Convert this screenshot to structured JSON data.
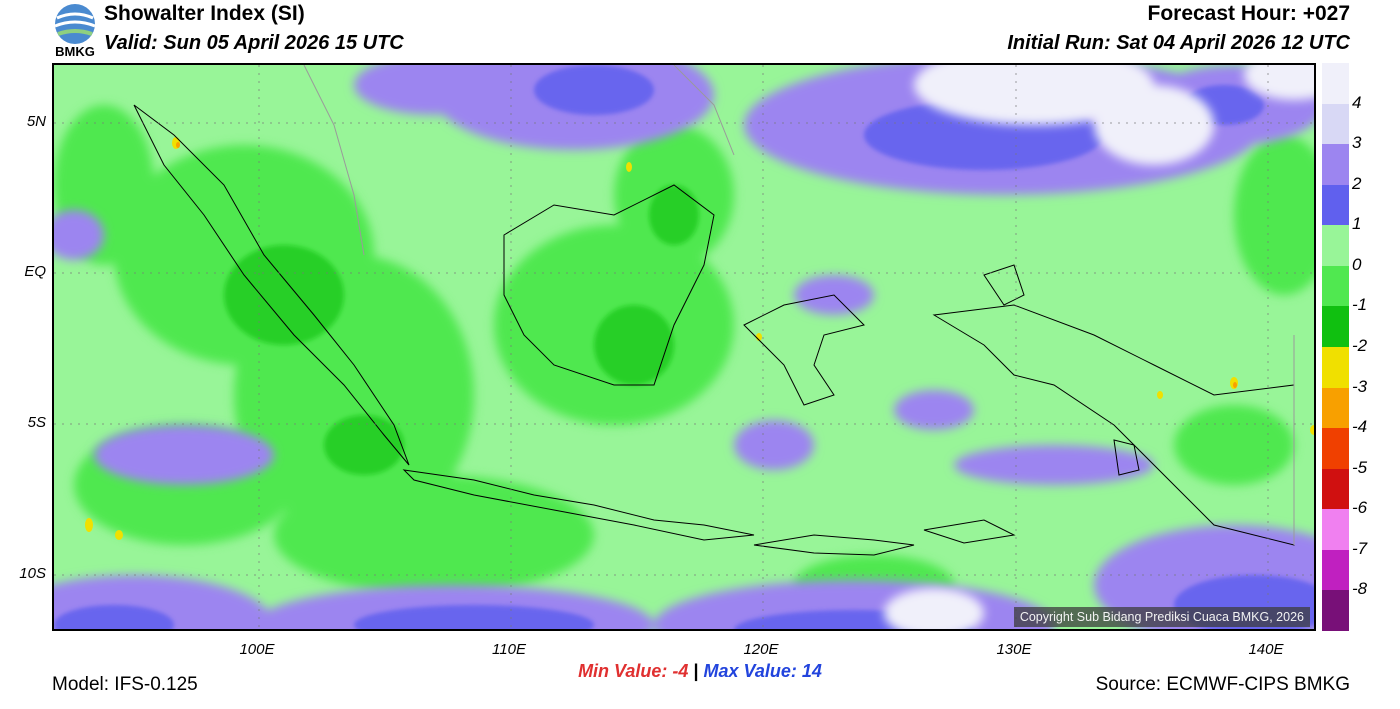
{
  "header": {
    "logo_text": "BMKG",
    "title": "Showalter Index (SI)",
    "valid": "Valid: Sun 05 April 2026 15 UTC",
    "forecast_hour": "Forecast Hour: +027",
    "initial_run": "Initial Run: Sat 04 April 2026 12 UTC"
  },
  "axes": {
    "y_ticks": [
      "5N",
      "EQ",
      "5S",
      "10S"
    ],
    "x_ticks": [
      "100E",
      "110E",
      "120E",
      "130E",
      "140E"
    ]
  },
  "colorbar": {
    "labels": [
      "4",
      "3",
      "2",
      "1",
      "0",
      "-1",
      "-2",
      "-3",
      "-4",
      "-5",
      "-6",
      "-7",
      "-8"
    ],
    "colors": [
      "#f0f0fa",
      "#d8d8f5",
      "#9c85f0",
      "#6060ee",
      "#98f598",
      "#50e850",
      "#10c010",
      "#f0e000",
      "#f8a000",
      "#f04000",
      "#d01010",
      "#f080f0",
      "#c020c0",
      "#781078"
    ]
  },
  "stats": {
    "min_label": "Min Value:",
    "min_value": "-4",
    "separator": "|",
    "max_label": "Max Value:",
    "max_value": "14"
  },
  "footer": {
    "model": "Model: IFS-0.125",
    "source": "Source: ECMWF-CIPS BMKG",
    "copyright": "Copyright Sub Bidang Prediksi Cuaca BMKG, 2026"
  }
}
